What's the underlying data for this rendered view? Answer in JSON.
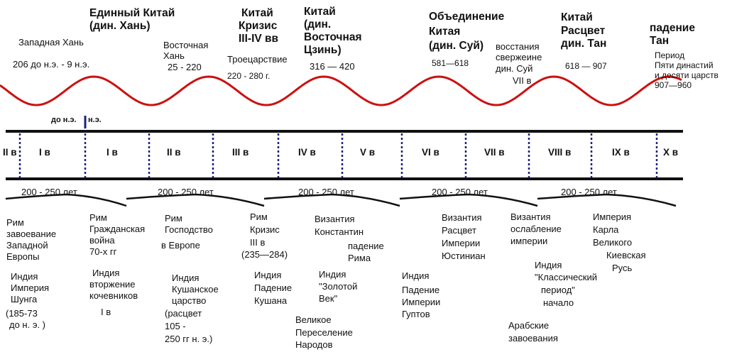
{
  "top": {
    "western_han_title": "Западная Хань",
    "western_han_dates": "206 до н.э. - 9 н.э.",
    "united_china_line1": "Единный Китай",
    "united_china_line2": "(дин. Хань)",
    "eastern_han_line1": "Восточная",
    "eastern_han_line2": "Хань",
    "eastern_han_dates": "25 - 220",
    "crisis_line1": "Китай",
    "crisis_line2": "Кризис",
    "crisis_line3": "III-IV вв",
    "three_kingdoms": "Троецарствие",
    "three_kingdoms_dates": "220 - 280 г.",
    "east_jin_line1": "Китай",
    "east_jin_line2": "(дин.",
    "east_jin_line3": "Восточная",
    "east_jin_line4": "Цзинь)",
    "east_jin_dates": "316 — 420",
    "sui_line1": "Объединение",
    "sui_line2": "Китая",
    "sui_line3": "(дин. Суй)",
    "sui_dates": "581—618",
    "uprising_line1": "восстания",
    "uprising_line2": "свержеине",
    "uprising_line3": "дин. Суй",
    "uprising_line4": "VII в",
    "tang_line1": "Китай",
    "tang_line2": "Расцвет",
    "tang_line3": "дин. Тан",
    "tang_dates": "618 — 907",
    "fall_tang_line1": "падение",
    "fall_tang_line2": "Тан",
    "five_dyn_line1": "Период",
    "five_dyn_line2": "Пяти династий",
    "five_dyn_line3": "и десяти царств",
    "five_dyn_line4": "907—960"
  },
  "era_marker": {
    "bc": "до н.э.",
    "ad": "н.э."
  },
  "centuries": [
    "II в",
    "I в",
    "I в",
    "II в",
    "III в",
    "IV в",
    "V в",
    "VI в",
    "VII в",
    "VIII в",
    "IX в",
    "X в"
  ],
  "period_label": "200 - 250 лет",
  "bottom": {
    "rome1_line1": "Рим",
    "rome1_line2": "завоевание",
    "rome1_line3": "Западной",
    "rome1_line4": "Европы",
    "india1_line1": "Индия",
    "india1_line2": "Империя",
    "india1_line3": "Шунга",
    "india1_line4": "(185-73",
    "india1_line5": "до н. э. )",
    "rome2_line1": "Рим",
    "rome2_line2": "Гражданская",
    "rome2_line3": "война",
    "rome2_line4": "70-х гг",
    "india2_line1": "Индия",
    "india2_line2": "вторжение",
    "india2_line3": "кочевников",
    "india2_line4": "I в",
    "rome3_line1": "Рим",
    "rome3_line2": "Господство",
    "rome3_line3": "в Европе",
    "india3_line1": "Индия",
    "india3_line2": "Кушанское",
    "india3_line3": "царство",
    "india3_line4": "(расцвет",
    "india3_line5": "105 -",
    "india3_line6": "250 гг н. э.)",
    "rome4_line1": "Рим",
    "rome4_line2": "Кризис",
    "rome4_line3": "III в",
    "rome4_line4": "(235—284)",
    "india4_line1": "Индия",
    "india4_line2": "Падение",
    "india4_line3": "Кушана",
    "byz1_line1": "Византия",
    "byz1_line2": "Константин",
    "byz1_line3": "падение",
    "byz1_line4": "Рима",
    "india5_line1": "Индия",
    "india5_line2": "\"Золотой",
    "india5_line3": "Век\"",
    "migration_line1": "Великое",
    "migration_line2": "Переселение",
    "migration_line3": "Народов",
    "india6_line1": "Индия",
    "india6_line2": "Падение",
    "india6_line3": "Империи",
    "india6_line4": "Гуптов",
    "byz2_line1": "Византия",
    "byz2_line2": "Расцвет",
    "byz2_line3": "Империи",
    "byz2_line4": "Юстиниан",
    "byz3_line1": "Византия",
    "byz3_line2": "ослабление",
    "byz3_line3": "империи",
    "india7_line1": "Индия",
    "india7_line2": "\"Классический",
    "india7_line3": "период\"",
    "india7_line4": "начало",
    "arab_line1": "Арабские",
    "arab_line2": "завоевания",
    "karl_line1": "Империя",
    "karl_line2": "Карла",
    "karl_line3": "Великого",
    "kievan_line1": "Киевская",
    "kievan_line2": "Русь"
  },
  "colors": {
    "wave": "#cc1111",
    "axis": "#111111",
    "divider": "#1a237e"
  }
}
